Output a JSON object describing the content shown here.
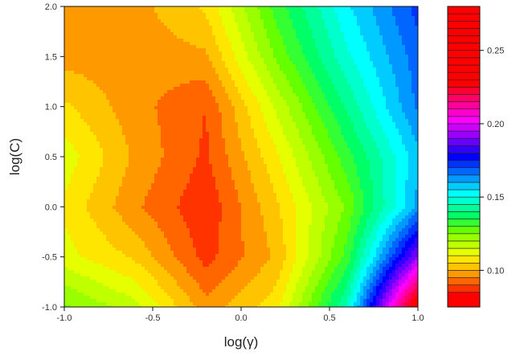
{
  "chart_data": {
    "type": "heatmap",
    "subtype": "filled-contour",
    "xlabel": "log(γ)",
    "ylabel": "log(C)",
    "xlim": [
      -1.0,
      1.0
    ],
    "ylim": [
      -1.0,
      2.0
    ],
    "x_ticks": [
      "-1.0",
      "-0.5",
      "0.0",
      "0.5",
      "1.0"
    ],
    "y_ticks": [
      "-1.0",
      "-0.5",
      "0.0",
      "0.5",
      "1.0",
      "1.5",
      "2.0"
    ],
    "x_tick_values": [
      -1.0,
      -0.5,
      0.0,
      0.5,
      1.0
    ],
    "y_tick_values": [
      -1.0,
      -0.5,
      0.0,
      0.5,
      1.0,
      1.5,
      2.0
    ],
    "grid_x": [
      -1.0,
      -0.6,
      -0.2,
      0.2,
      0.6,
      1.0
    ],
    "grid_y": [
      -1.0,
      -0.5,
      0.0,
      0.5,
      1.0,
      1.5,
      2.0
    ],
    "z": [
      [
        0.126,
        0.117,
        0.097,
        0.108,
        0.146,
        0.238
      ],
      [
        0.112,
        0.104,
        0.088,
        0.101,
        0.132,
        0.192
      ],
      [
        0.109,
        0.096,
        0.086,
        0.104,
        0.126,
        0.162
      ],
      [
        0.113,
        0.099,
        0.089,
        0.109,
        0.133,
        0.158
      ],
      [
        0.106,
        0.097,
        0.09,
        0.116,
        0.141,
        0.166
      ],
      [
        0.098,
        0.097,
        0.099,
        0.126,
        0.149,
        0.168
      ],
      [
        0.098,
        0.098,
        0.106,
        0.132,
        0.154,
        0.172
      ]
    ],
    "colorbar": {
      "tick_labels": [
        "0.10",
        "0.15",
        "0.20",
        "0.25"
      ],
      "tick_values": [
        0.1,
        0.15,
        0.2,
        0.25
      ],
      "range": [
        0.075,
        0.28
      ],
      "levels": [
        0.075,
        0.085,
        0.09,
        0.095,
        0.1,
        0.105,
        0.11,
        0.115,
        0.12,
        0.125,
        0.13,
        0.135,
        0.14,
        0.145,
        0.15,
        0.155,
        0.16,
        0.165,
        0.17,
        0.175,
        0.18,
        0.185,
        0.19,
        0.195,
        0.2,
        0.205,
        0.21,
        0.215,
        0.22,
        0.225,
        0.23,
        0.235,
        0.24,
        0.245,
        0.25,
        0.255,
        0.26,
        0.265,
        0.27,
        0.275,
        0.28
      ],
      "level_colors": [
        "#ff0000",
        "#ff3300",
        "#ff6600",
        "#ff9900",
        "#ffc400",
        "#ffe600",
        "#e6ff00",
        "#bfff00",
        "#99ff00",
        "#66ff00",
        "#33ff33",
        "#00ff66",
        "#00ff99",
        "#00ffcc",
        "#00ffff",
        "#00ccff",
        "#0099ff",
        "#0066ff",
        "#0033ff",
        "#0000ff",
        "#3300ff",
        "#6600ff",
        "#9900ff",
        "#cc00ff",
        "#ff00ff",
        "#ff00cc",
        "#ff0099",
        "#ff0066",
        "#ff0033",
        "#ff0000",
        "#ff0000",
        "#ff0000",
        "#ff0000",
        "#ff0000",
        "#ff0000",
        "#ff0000",
        "#ff0000",
        "#ff0000",
        "#ff0000",
        "#ff0000"
      ]
    }
  }
}
